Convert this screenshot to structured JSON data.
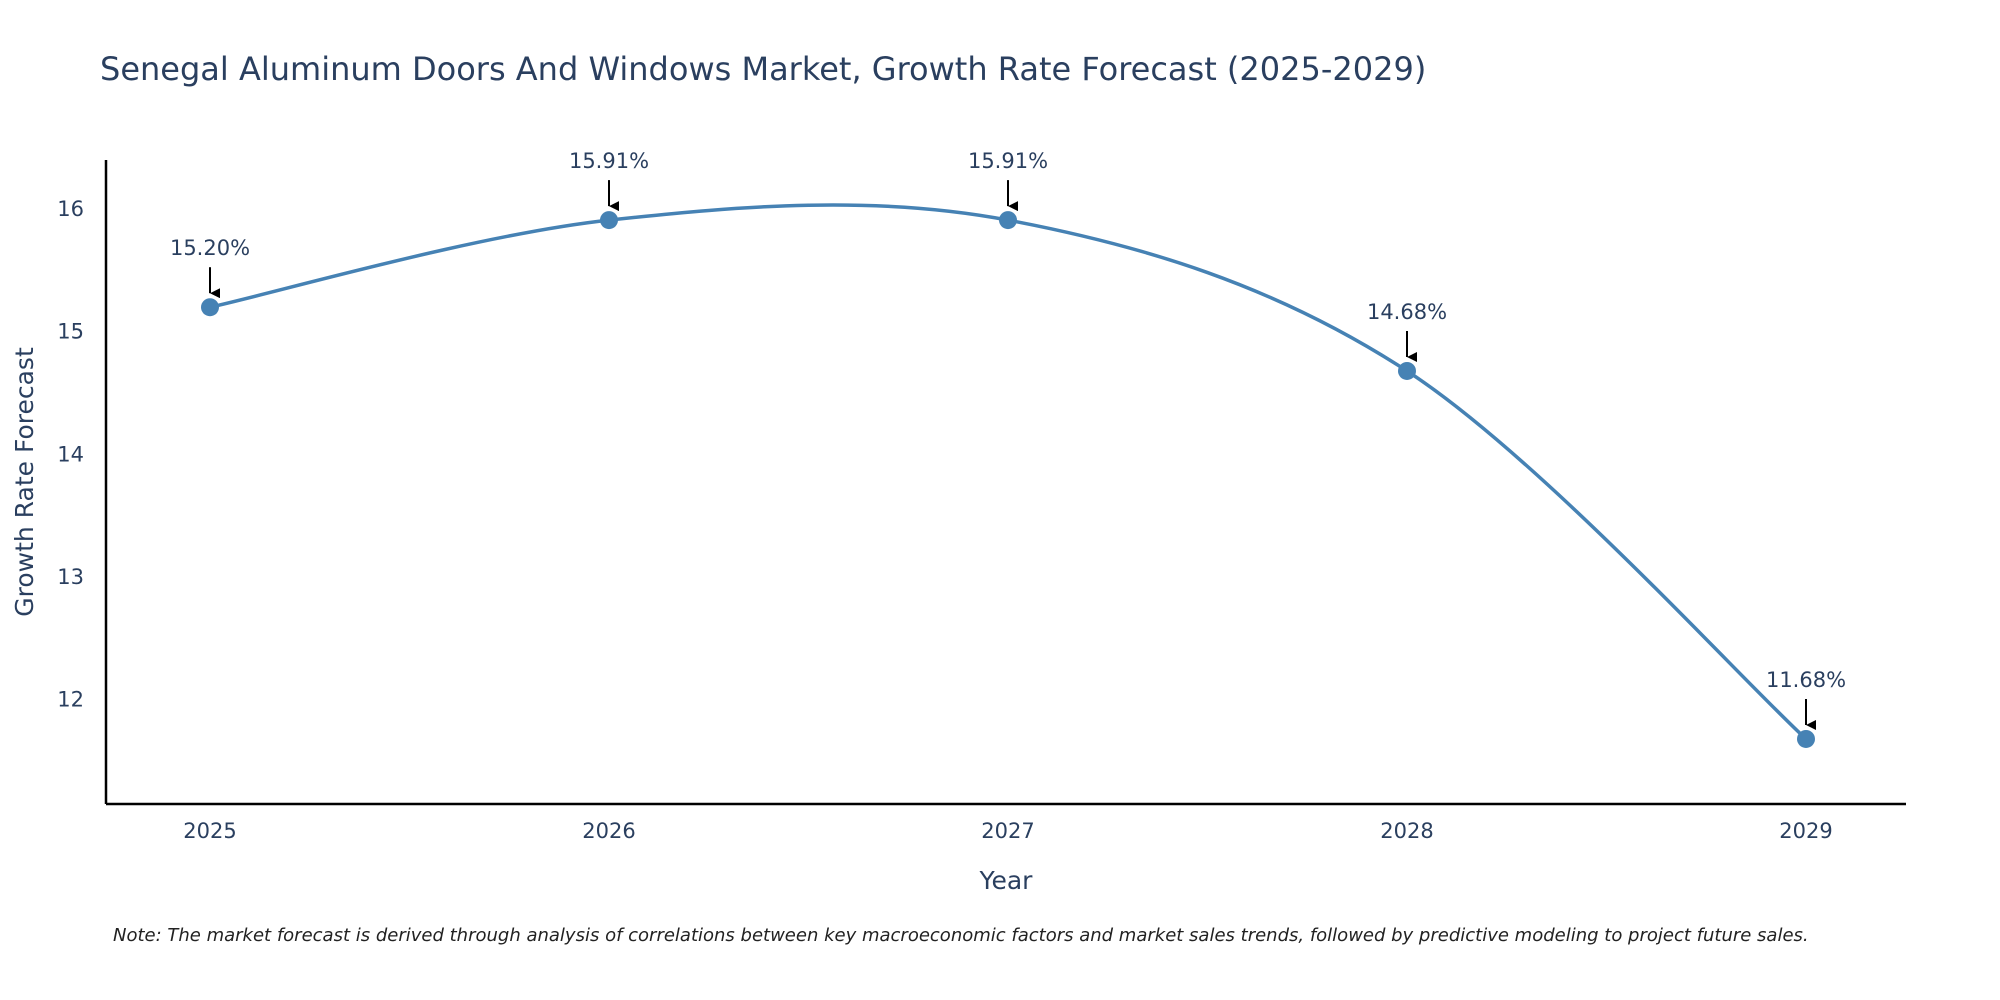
{
  "chart_data": {
    "type": "line",
    "title": "Senegal Aluminum Doors And Windows Market, Growth Rate Forecast (2025-2029)",
    "xlabel": "Year",
    "ylabel": "Growth Rate Forecast",
    "categories": [
      "2025",
      "2026",
      "2027",
      "2028",
      "2029"
    ],
    "series": [
      {
        "name": "Growth Rate Forecast",
        "values": [
          15.2,
          15.91,
          15.91,
          14.68,
          11.68
        ],
        "labels": [
          "15.20%",
          "15.91%",
          "15.91%",
          "14.68%",
          "11.68%"
        ]
      }
    ],
    "yticks": [
      12,
      13,
      14,
      15,
      16
    ],
    "ylim": [
      11.15,
      16.4
    ],
    "grid": false,
    "line_shape": "spline",
    "colors": {
      "line": "#4682b4",
      "marker": "#4682b4",
      "text": "#2a3f5f",
      "axis": "#000000",
      "arrow": "#000000"
    }
  },
  "note": "Note: The market forecast is derived through analysis of correlations between key macroeconomic factors and market sales trends, followed by predictive modeling to project future sales."
}
